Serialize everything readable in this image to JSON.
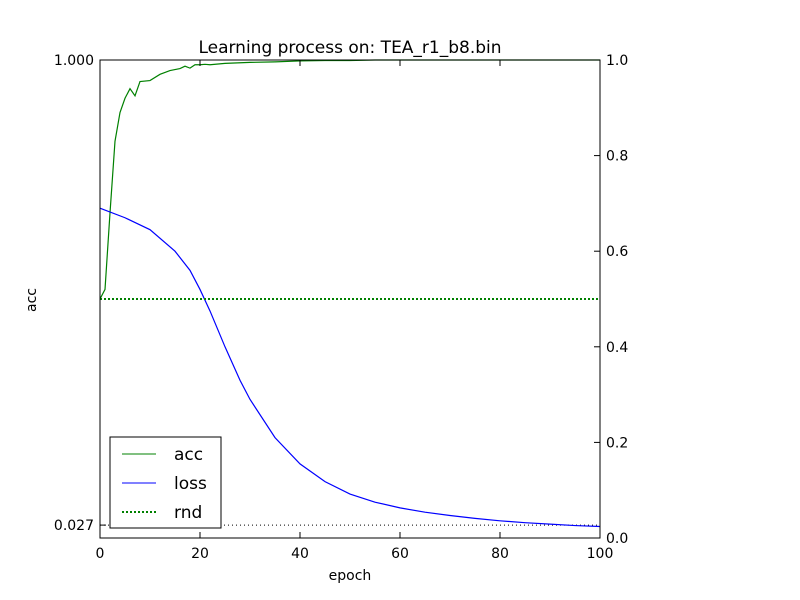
{
  "chart_data": {
    "type": "line",
    "title": "Learning process on: TEA_r1_b8.bin",
    "xlabel": "epoch",
    "ylabel": "acc",
    "xlim": [
      0,
      100
    ],
    "ylim_left": [
      0,
      1
    ],
    "ylim_right": [
      0,
      1.0
    ],
    "x_ticks": [
      "0",
      "20",
      "40",
      "60",
      "80",
      "100"
    ],
    "x_tick_values": [
      0,
      20,
      40,
      60,
      80,
      100
    ],
    "left_ticks": [
      "0.027",
      "1.000"
    ],
    "left_tick_values": [
      0.027,
      1.0
    ],
    "right_ticks": [
      "0.0",
      "0.2",
      "0.4",
      "0.6",
      "0.8",
      "1.0"
    ],
    "right_tick_values": [
      0.0,
      0.2,
      0.4,
      0.6,
      0.8,
      1.0
    ],
    "grid": false,
    "legend_position": "lower-left",
    "series": [
      {
        "name": "acc",
        "axis": "left",
        "color": "#008000",
        "style": "solid",
        "x": [
          0,
          1,
          2,
          3,
          4,
          5,
          6,
          7,
          8,
          10,
          12,
          14,
          16,
          17,
          18,
          19,
          20,
          21,
          22,
          25,
          30,
          35,
          40,
          45,
          50,
          55,
          60,
          70,
          80,
          90,
          100
        ],
        "y": [
          0.5,
          0.52,
          0.68,
          0.83,
          0.89,
          0.92,
          0.94,
          0.925,
          0.955,
          0.957,
          0.97,
          0.978,
          0.982,
          0.987,
          0.983,
          0.99,
          0.99,
          0.991,
          0.99,
          0.993,
          0.995,
          0.996,
          0.998,
          0.999,
          0.999,
          1.0,
          1.0,
          1.0,
          1.0,
          1.0,
          1.0
        ]
      },
      {
        "name": "loss",
        "axis": "right",
        "color": "#0000ff",
        "style": "solid",
        "x": [
          0,
          5,
          10,
          15,
          18,
          20,
          22,
          25,
          28,
          30,
          35,
          40,
          45,
          50,
          55,
          60,
          65,
          70,
          75,
          80,
          85,
          90,
          95,
          100
        ],
        "y": [
          0.69,
          0.67,
          0.645,
          0.6,
          0.56,
          0.52,
          0.475,
          0.4,
          0.33,
          0.29,
          0.21,
          0.155,
          0.118,
          0.092,
          0.075,
          0.063,
          0.054,
          0.047,
          0.041,
          0.036,
          0.032,
          0.029,
          0.026,
          0.024
        ]
      },
      {
        "name": "rnd",
        "axis": "left",
        "color": "#008000",
        "style": "dotted",
        "x": [
          0,
          100
        ],
        "y": [
          0.5,
          0.5
        ]
      }
    ],
    "reference_line": {
      "axis": "left",
      "value": 0.027,
      "color": "#000000",
      "style": "dotted"
    }
  }
}
